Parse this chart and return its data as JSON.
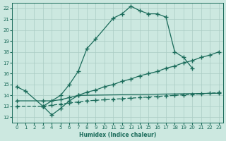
{
  "xlabel": "Humidex (Indice chaleur)",
  "background_color": "#cce8e0",
  "grid_color": "#aaccc4",
  "line_color": "#1a6b5a",
  "xlim": [
    -0.5,
    23.5
  ],
  "ylim": [
    11.5,
    22.5
  ],
  "yticks": [
    12,
    13,
    14,
    15,
    16,
    17,
    18,
    19,
    20,
    21,
    22
  ],
  "xticks": [
    0,
    1,
    2,
    3,
    4,
    5,
    6,
    7,
    8,
    9,
    10,
    11,
    12,
    13,
    14,
    15,
    16,
    17,
    18,
    19,
    20,
    21,
    22,
    23
  ],
  "line1_x": [
    0,
    1,
    3,
    5,
    6,
    7,
    8,
    9,
    11,
    12,
    13,
    14,
    15,
    16,
    17,
    18,
    19,
    20
  ],
  "line1_y": [
    14.8,
    14.4,
    13.0,
    14.0,
    15.0,
    16.2,
    18.3,
    19.2,
    21.1,
    21.5,
    22.2,
    21.8,
    21.5,
    21.5,
    21.2,
    18.0,
    17.5,
    16.5
  ],
  "line2_x": [
    3,
    4,
    5,
    6,
    7,
    23
  ],
  "line2_y": [
    13.0,
    12.2,
    12.8,
    13.5,
    14.0,
    14.2
  ],
  "line3_x": [
    0,
    3,
    4,
    5,
    6,
    7,
    8,
    9,
    10,
    11,
    12,
    13,
    14,
    15,
    16,
    17,
    18,
    19,
    20,
    21,
    22,
    23
  ],
  "line3_y": [
    13.5,
    13.5,
    13.5,
    13.6,
    13.8,
    14.0,
    14.3,
    14.5,
    14.8,
    15.0,
    15.3,
    15.5,
    15.8,
    16.0,
    16.2,
    16.5,
    16.7,
    17.0,
    17.2,
    17.5,
    17.7,
    18.0
  ],
  "line4_x": [
    0,
    3,
    4,
    5,
    6,
    7,
    8,
    9,
    10,
    11,
    12,
    13,
    14,
    15,
    16,
    17,
    18,
    19,
    20,
    21,
    22,
    23
  ],
  "line4_y": [
    13.0,
    13.0,
    13.1,
    13.2,
    13.3,
    13.4,
    13.5,
    13.55,
    13.6,
    13.65,
    13.7,
    13.75,
    13.8,
    13.85,
    13.9,
    13.95,
    14.0,
    14.05,
    14.1,
    14.15,
    14.2,
    14.25
  ]
}
